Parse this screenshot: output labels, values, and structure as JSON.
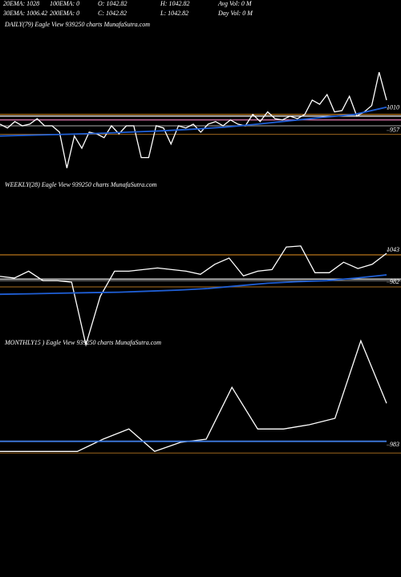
{
  "header": {
    "line1": [
      "20EMA: 1028",
      "100EMA: 0",
      "O: 1042.82",
      "H: 1042.82",
      "Avg Vol: 0  M"
    ],
    "line2": [
      "30EMA: 1006.42",
      "200EMA: 0",
      "C: 1042.82",
      "L: 1042.82",
      "Day Vol: 0  M"
    ]
  },
  "chart_data": [
    {
      "type": "line",
      "title": "DAILY(79) Eagle  View  939250  charts MunafaSutra.com",
      "ylim": [
        858,
        1190
      ],
      "yticks": [
        1010,
        957
      ],
      "hlines": [
        {
          "value": 995,
          "color": "#b8741a"
        },
        {
          "value": 991,
          "color": "#ffffff"
        },
        {
          "value": 982,
          "color": "#e07ab0"
        },
        {
          "value": 968,
          "color": "#888888"
        },
        {
          "value": 948,
          "color": "#8a5a1a"
        }
      ],
      "series": [
        {
          "color": "#ffffff",
          "values": [
            972,
            963,
            978,
            968,
            972,
            985,
            968,
            968,
            953,
            868,
            944,
            915,
            953,
            949,
            940,
            968,
            949,
            968,
            968,
            893,
            893,
            968,
            963,
            925,
            968,
            963,
            972,
            953,
            972,
            978,
            968,
            982,
            972,
            968,
            995,
            978,
            1001,
            985,
            982,
            991,
            985,
            995,
            1029,
            1019,
            1042,
            1001,
            1004,
            1038,
            991,
            1001,
            1016,
            1095,
            1029
          ]
        },
        {
          "color": "#1f5fd6",
          "values": [
            944,
            946,
            948,
            950,
            953,
            956,
            960,
            965,
            972,
            980,
            988,
            995,
            1012
          ]
        }
      ]
    },
    {
      "type": "line",
      "title": "WEEKLY(28) Eagle  View  939250  charts MunafaSutra.com",
      "ylim": [
        848,
        1153
      ],
      "yticks": [
        1043,
        982
      ],
      "hlines": [
        {
          "value": 1034,
          "color": "#b8741a"
        },
        {
          "value": 988,
          "color": "#ffffff"
        },
        {
          "value": 985,
          "color": "#888888"
        },
        {
          "value": 973,
          "color": "#8a5a1a"
        }
      ],
      "series": [
        {
          "color": "#ffffff",
          "values": [
            993,
            990,
            1003,
            985,
            985,
            982,
            863,
            955,
            1003,
            1003,
            1006,
            1009,
            1006,
            1003,
            997,
            1016,
            1028,
            994,
            1003,
            1006,
            1049,
            1051,
            1000,
            1000,
            1020,
            1008,
            1016,
            1037
          ]
        },
        {
          "color": "#1f5fd6",
          "values": [
            959,
            960,
            961,
            962,
            963,
            965,
            967,
            970,
            975,
            980,
            983,
            985,
            990,
            996
          ]
        }
      ]
    },
    {
      "type": "line",
      "title": "MONTHLY15   ) Eagle  View  939250  charts MunafaSutra.com",
      "ylim": [
        766,
        1186
      ],
      "yticks": [
        983
      ],
      "hlines": [
        {
          "value": 968,
          "color": "#8a5a1a"
        }
      ],
      "series": [
        {
          "color": "#ffffff",
          "values": [
            971,
            971,
            971,
            971,
            994,
            1013,
            971,
            988,
            994,
            1091,
            1013,
            1013,
            1021,
            1033,
            1178,
            1061
          ]
        },
        {
          "color": "#3f7be0",
          "values": [
            990,
            990
          ]
        }
      ]
    }
  ]
}
